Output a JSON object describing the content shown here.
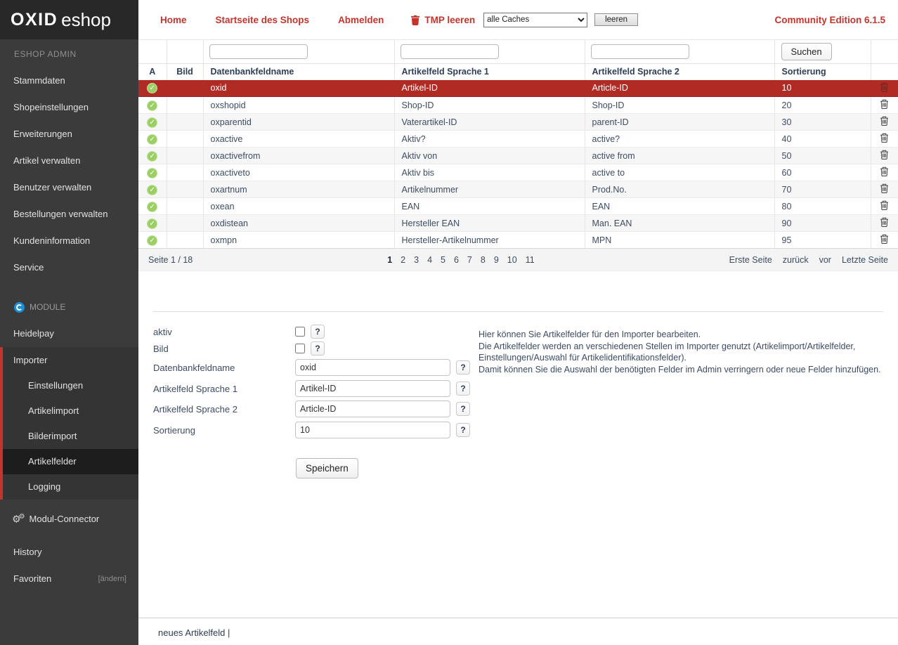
{
  "colors": {
    "accent_red": "#b12b25",
    "link_red": "#c5342c",
    "check_green": "#9bcf63"
  },
  "topbar": {
    "logo_bold": "OXID",
    "logo_light": "eshop",
    "links": [
      "Home",
      "Startseite des Shops",
      "Abmelden"
    ],
    "tmp_label": "TMP leeren",
    "cache_option": "alle Caches",
    "clear_button": "leeren",
    "edition": "Community Edition 6.1.5"
  },
  "sidebar": {
    "section_admin": "ESHOP ADMIN",
    "admin_items": [
      "Stammdaten",
      "Shopeinstellungen",
      "Erweiterungen",
      "Artikel verwalten",
      "Benutzer verwalten",
      "Bestellungen verwalten",
      "Kundeninformation",
      "Service"
    ],
    "section_module": "MODULE",
    "heidelpay": "Heidelpay",
    "importer": "Importer",
    "importer_subitems": [
      {
        "label": "Einstellungen",
        "active": false
      },
      {
        "label": "Artikelimport",
        "active": false
      },
      {
        "label": "Bilderimport",
        "active": false
      },
      {
        "label": "Artikelfelder",
        "active": true
      },
      {
        "label": "Logging",
        "active": false
      }
    ],
    "modul_connector": "Modul-Connector",
    "history": "History",
    "favoriten": "Favoriten",
    "favoriten_action": "[ändern]"
  },
  "table": {
    "columns": [
      "A",
      "Bild",
      "Datenbankfeldname",
      "Artikelfeld Sprache 1",
      "Artikelfeld Sprache 2",
      "Sortierung"
    ],
    "search_button": "Suchen",
    "rows": [
      {
        "selected": true,
        "active": false,
        "db": "oxid",
        "lang1": "Artikel-ID",
        "lang2": "Article-ID",
        "sort": "10"
      },
      {
        "selected": false,
        "active": false,
        "db": "oxshopid",
        "lang1": "Shop-ID",
        "lang2": "Shop-ID",
        "sort": "20"
      },
      {
        "selected": false,
        "active": false,
        "db": "oxparentid",
        "lang1": "Vaterartikel-ID",
        "lang2": "parent-ID",
        "sort": "30"
      },
      {
        "selected": false,
        "active": true,
        "db": "oxactive",
        "lang1": "Aktiv?",
        "lang2": "active?",
        "sort": "40"
      },
      {
        "selected": false,
        "active": false,
        "db": "oxactivefrom",
        "lang1": "Aktiv von",
        "lang2": "active from",
        "sort": "50"
      },
      {
        "selected": false,
        "active": false,
        "db": "oxactiveto",
        "lang1": "Aktiv bis",
        "lang2": "active to",
        "sort": "60"
      },
      {
        "selected": false,
        "active": true,
        "db": "oxartnum",
        "lang1": "Artikelnummer",
        "lang2": "Prod.No.",
        "sort": "70"
      },
      {
        "selected": false,
        "active": true,
        "db": "oxean",
        "lang1": "EAN",
        "lang2": "EAN",
        "sort": "80"
      },
      {
        "selected": false,
        "active": true,
        "db": "oxdistean",
        "lang1": "Hersteller EAN",
        "lang2": "Man. EAN",
        "sort": "90"
      },
      {
        "selected": false,
        "active": true,
        "db": "oxmpn",
        "lang1": "Hersteller-Artikelnummer",
        "lang2": "MPN",
        "sort": "95"
      }
    ]
  },
  "pagination": {
    "status": "Seite 1 / 18",
    "pages": [
      "1",
      "2",
      "3",
      "4",
      "5",
      "6",
      "7",
      "8",
      "9",
      "10",
      "11"
    ],
    "current": "1",
    "first": "Erste Seite",
    "prev": "zurück",
    "next": "vor",
    "last": "Letzte Seite"
  },
  "form": {
    "checkbox_fields": [
      {
        "label": "aktiv"
      },
      {
        "label": "Bild"
      }
    ],
    "text_fields": [
      {
        "label": "Datenbankfeldname",
        "value": "oxid"
      },
      {
        "label": "Artikelfeld Sprache 1",
        "value": "Artikel-ID"
      },
      {
        "label": "Artikelfeld Sprache 2",
        "value": "Article-ID"
      },
      {
        "label": "Sortierung",
        "value": "10"
      }
    ],
    "help_symbol": "?",
    "save_button": "Speichern",
    "help_paragraphs": [
      "Hier können Sie Artikelfelder für den Importer bearbeiten.",
      "Die Artikelfelder werden an verschiedenen Stellen im Importer genutzt (Artikelimport/Artikelfelder, Einstellungen/Auswahl für Artikelidentifikationsfelder).",
      "Damit können Sie die Auswahl der benötigten Felder im Admin verringern oder neue Felder hinzufügen."
    ]
  },
  "footer": {
    "link": "neues Artikelfeld",
    "separator": "|"
  }
}
